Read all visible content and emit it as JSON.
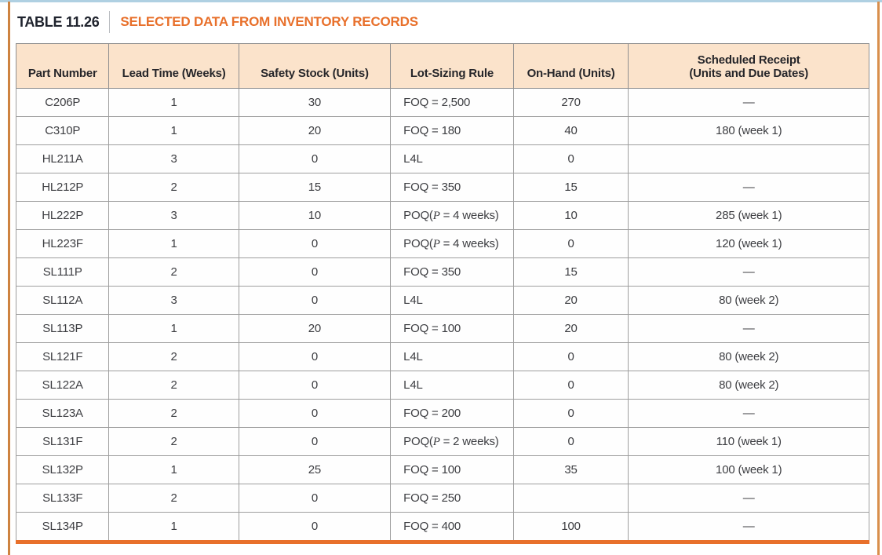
{
  "caption": {
    "label": "TABLE 11.26",
    "title": "SELECTED DATA FROM INVENTORY RECORDS"
  },
  "colors": {
    "accent_orange": "#E8702B",
    "header_bg": "#FBE3CB",
    "caption_dark": "#20242E",
    "border_gray": "#9E9E9E",
    "top_edge_blue": "#AFD0E2"
  },
  "table": {
    "columns": [
      {
        "label": "Part Number",
        "label2": ""
      },
      {
        "label": "Lead Time (Weeks)",
        "label2": ""
      },
      {
        "label": "Safety Stock (Units)",
        "label2": ""
      },
      {
        "label": "Lot-Sizing Rule",
        "label2": ""
      },
      {
        "label": "On-Hand (Units)",
        "label2": ""
      },
      {
        "label": "Scheduled Receipt",
        "label2": "(Units and Due Dates)"
      }
    ],
    "rows": [
      {
        "part": "C206P",
        "lead_time_weeks": "1",
        "safety_stock_units": "30",
        "lot_sizing_rule": "FOQ = 2,500",
        "on_hand_units": "270",
        "scheduled_receipt": "—"
      },
      {
        "part": "C310P",
        "lead_time_weeks": "1",
        "safety_stock_units": "20",
        "lot_sizing_rule": "FOQ = 180",
        "on_hand_units": "40",
        "scheduled_receipt": "180 (week 1)"
      },
      {
        "part": "HL211A",
        "lead_time_weeks": "3",
        "safety_stock_units": "0",
        "lot_sizing_rule": "L4L",
        "on_hand_units": "0",
        "scheduled_receipt": ""
      },
      {
        "part": "HL212P",
        "lead_time_weeks": "2",
        "safety_stock_units": "15",
        "lot_sizing_rule": "FOQ = 350",
        "on_hand_units": "15",
        "scheduled_receipt": "—"
      },
      {
        "part": "HL222P",
        "lead_time_weeks": "3",
        "safety_stock_units": "10",
        "lot_sizing_rule": "POQ(P = 4 weeks)",
        "on_hand_units": "10",
        "scheduled_receipt": "285 (week 1)"
      },
      {
        "part": "HL223F",
        "lead_time_weeks": "1",
        "safety_stock_units": "0",
        "lot_sizing_rule": "POQ(P = 4 weeks)",
        "on_hand_units": "0",
        "scheduled_receipt": "120 (week 1)"
      },
      {
        "part": "SL111P",
        "lead_time_weeks": "2",
        "safety_stock_units": "0",
        "lot_sizing_rule": "FOQ = 350",
        "on_hand_units": "15",
        "scheduled_receipt": "—"
      },
      {
        "part": "SL112A",
        "lead_time_weeks": "3",
        "safety_stock_units": "0",
        "lot_sizing_rule": "L4L",
        "on_hand_units": "20",
        "scheduled_receipt": "80 (week 2)"
      },
      {
        "part": "SL113P",
        "lead_time_weeks": "1",
        "safety_stock_units": "20",
        "lot_sizing_rule": "FOQ = 100",
        "on_hand_units": "20",
        "scheduled_receipt": "—"
      },
      {
        "part": "SL121F",
        "lead_time_weeks": "2",
        "safety_stock_units": "0",
        "lot_sizing_rule": "L4L",
        "on_hand_units": "0",
        "scheduled_receipt": "80 (week 2)"
      },
      {
        "part": "SL122A",
        "lead_time_weeks": "2",
        "safety_stock_units": "0",
        "lot_sizing_rule": "L4L",
        "on_hand_units": "0",
        "scheduled_receipt": "80 (week 2)"
      },
      {
        "part": "SL123A",
        "lead_time_weeks": "2",
        "safety_stock_units": "0",
        "lot_sizing_rule": "FOQ = 200",
        "on_hand_units": "0",
        "scheduled_receipt": "—"
      },
      {
        "part": "SL131F",
        "lead_time_weeks": "2",
        "safety_stock_units": "0",
        "lot_sizing_rule": "POQ(P = 2 weeks)",
        "on_hand_units": "0",
        "scheduled_receipt": "110 (week 1)"
      },
      {
        "part": "SL132P",
        "lead_time_weeks": "1",
        "safety_stock_units": "25",
        "lot_sizing_rule": "FOQ = 100",
        "on_hand_units": "35",
        "scheduled_receipt": "100 (week 1)"
      },
      {
        "part": "SL133F",
        "lead_time_weeks": "2",
        "safety_stock_units": "0",
        "lot_sizing_rule": "FOQ = 250",
        "on_hand_units": "",
        "scheduled_receipt": "—"
      },
      {
        "part": "SL134P",
        "lead_time_weeks": "1",
        "safety_stock_units": "0",
        "lot_sizing_rule": "FOQ = 400",
        "on_hand_units": "100",
        "scheduled_receipt": "—"
      }
    ]
  }
}
